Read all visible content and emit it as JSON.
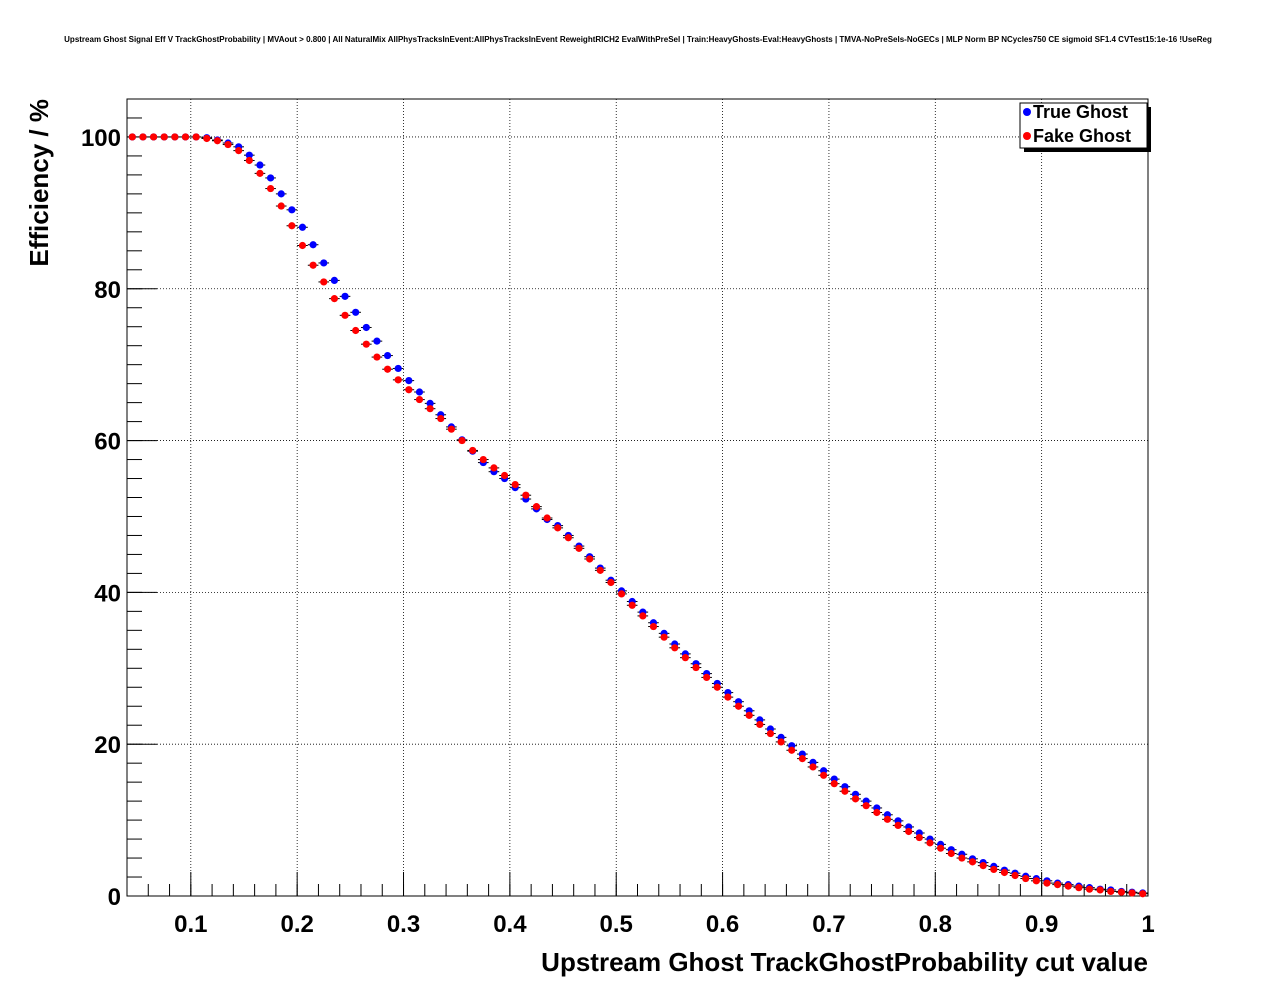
{
  "chart_data": {
    "type": "scatter",
    "title": "Upstream Ghost Signal Eff V TrackGhostProbability | MVAout > 0.800 | All NaturalMix AllPhysTracksInEvent:AllPhysTracksInEvent ReweightRICH2 EvalWithPreSel | Train:HeavyGhosts-Eval:HeavyGhosts | TMVA-NoPreSels-NoGECs | MLP Norm BP NCycles750 CE sigmoid SF1.4 CVTest15:1e-16 !UseReg",
    "xlabel": "Upstream Ghost TrackGhostProbability cut value",
    "ylabel": "Efficiency / %",
    "xlim": [
      0.04,
      1.0
    ],
    "ylim": [
      0,
      105
    ],
    "grid": true,
    "legend_position": "top-right",
    "x_ticks": [
      "0.1",
      "0.2",
      "0.3",
      "0.4",
      "0.5",
      "0.6",
      "0.7",
      "0.8",
      "0.9",
      "1"
    ],
    "y_ticks": [
      "0",
      "20",
      "40",
      "60",
      "80",
      "100"
    ],
    "x_start": 0.045,
    "x_step": 0.01,
    "series": [
      {
        "name": "True Ghost",
        "color": "#0000ff",
        "values": [
          100,
          100,
          100,
          100,
          100,
          100,
          100,
          99.9,
          99.6,
          99.2,
          98.7,
          97.6,
          96.3,
          94.6,
          92.5,
          90.4,
          88.1,
          85.8,
          83.4,
          81.1,
          79.0,
          76.9,
          74.9,
          73.1,
          71.2,
          69.5,
          67.9,
          66.4,
          64.9,
          63.4,
          61.8,
          60.1,
          58.6,
          57.1,
          55.9,
          55.0,
          53.8,
          52.3,
          51.0,
          49.6,
          48.8,
          47.5,
          46.1,
          44.7,
          43.2,
          41.6,
          40.2,
          38.8,
          37.4,
          36.0,
          34.6,
          33.2,
          31.9,
          30.6,
          29.3,
          28.0,
          26.8,
          25.6,
          24.4,
          23.2,
          22.0,
          20.9,
          19.8,
          18.7,
          17.6,
          16.5,
          15.4,
          14.4,
          13.4,
          12.5,
          11.6,
          10.7,
          9.9,
          9.1,
          8.3,
          7.5,
          6.8,
          6.1,
          5.5,
          4.9,
          4.4,
          3.9,
          3.4,
          3.0,
          2.6,
          2.3,
          2.0,
          1.7,
          1.5,
          1.3,
          1.1,
          0.9,
          0.8,
          0.6,
          0.5,
          0.4
        ]
      },
      {
        "name": "Fake Ghost",
        "color": "#ff0000",
        "values": [
          100,
          100,
          100,
          100,
          100,
          100,
          100,
          99.8,
          99.5,
          99.0,
          98.2,
          96.9,
          95.2,
          93.2,
          90.9,
          88.3,
          85.7,
          83.1,
          80.9,
          78.7,
          76.5,
          74.5,
          72.7,
          71.0,
          69.4,
          68.0,
          66.7,
          65.4,
          64.2,
          62.9,
          61.5,
          60.0,
          58.7,
          57.5,
          56.4,
          55.4,
          54.2,
          52.8,
          51.3,
          49.8,
          48.5,
          47.2,
          45.8,
          44.4,
          42.9,
          41.3,
          39.8,
          38.3,
          36.9,
          35.5,
          34.1,
          32.7,
          31.4,
          30.1,
          28.8,
          27.5,
          26.2,
          25.0,
          23.8,
          22.6,
          21.4,
          20.3,
          19.2,
          18.1,
          17.0,
          15.9,
          14.8,
          13.8,
          12.8,
          11.9,
          11.0,
          10.1,
          9.3,
          8.5,
          7.7,
          7.0,
          6.3,
          5.6,
          5.0,
          4.5,
          4.0,
          3.5,
          3.1,
          2.7,
          2.3,
          2.0,
          1.7,
          1.5,
          1.3,
          1.1,
          0.9,
          0.8,
          0.6,
          0.5,
          0.4,
          0.3
        ]
      }
    ]
  }
}
